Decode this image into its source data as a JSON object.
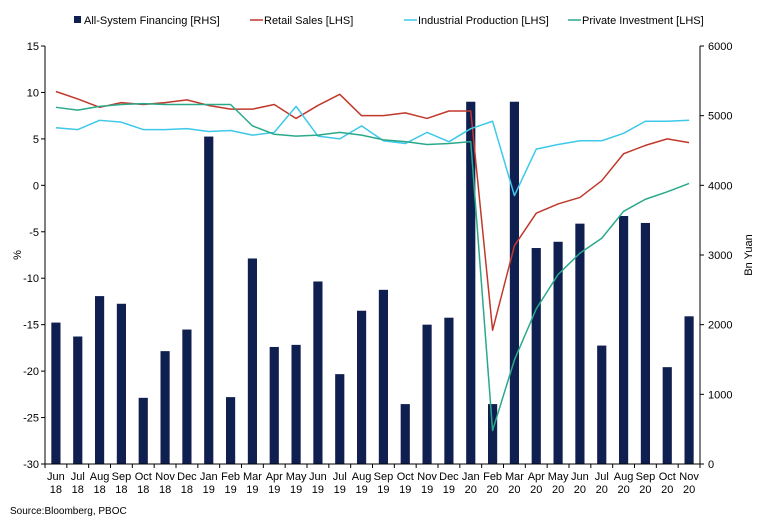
{
  "chart_data": {
    "type": "bar",
    "categories": [
      [
        "Jun",
        "18"
      ],
      [
        "Jul",
        "18"
      ],
      [
        "Aug",
        "18"
      ],
      [
        "Sep",
        "18"
      ],
      [
        "Oct",
        "18"
      ],
      [
        "Nov",
        "18"
      ],
      [
        "Dec",
        "18"
      ],
      [
        "Jan",
        "19"
      ],
      [
        "Feb",
        "19"
      ],
      [
        "Mar",
        "19"
      ],
      [
        "Apr",
        "19"
      ],
      [
        "May",
        "19"
      ],
      [
        "Jun",
        "19"
      ],
      [
        "Jul",
        "19"
      ],
      [
        "Aug",
        "19"
      ],
      [
        "Sep",
        "19"
      ],
      [
        "Oct",
        "19"
      ],
      [
        "Nov",
        "19"
      ],
      [
        "Dec",
        "19"
      ],
      [
        "Jan",
        "20"
      ],
      [
        "Feb",
        "20"
      ],
      [
        "Mar",
        "20"
      ],
      [
        "Apr",
        "20"
      ],
      [
        "May",
        "20"
      ],
      [
        "Jun",
        "20"
      ],
      [
        "Jul",
        "20"
      ],
      [
        "Aug",
        "20"
      ],
      [
        "Sep",
        "20"
      ],
      [
        "Oct",
        "20"
      ],
      [
        "Nov",
        "20"
      ]
    ],
    "ylabel": "%",
    "ylabel_right": "Bn Yuan",
    "ylim": [
      -30,
      15
    ],
    "ylim_right": [
      0,
      6000
    ],
    "yticks_left": [
      "15",
      "10",
      "5",
      "0",
      "-5",
      "-10",
      "-15",
      "-20",
      "-25",
      "-30"
    ],
    "yticks_right": [
      "6000",
      "5000",
      "4000",
      "3000",
      "2000",
      "1000",
      "0"
    ],
    "legend_position": "top",
    "grid": false,
    "series": [
      {
        "name": "All-System Financing [RHS]",
        "type": "bar",
        "axis": "right",
        "color": "#0f1f4f",
        "values": [
          2030,
          1830,
          2410,
          2300,
          950,
          1620,
          1930,
          4700,
          960,
          2950,
          1680,
          1710,
          2620,
          1290,
          2200,
          2500,
          860,
          2000,
          2100,
          5200,
          860,
          5200,
          3100,
          3190,
          3450,
          1700,
          3560,
          3460,
          1390,
          2120
        ]
      },
      {
        "name": "Retail Sales [LHS]",
        "type": "line",
        "axis": "left",
        "color": "#c0392b",
        "values": [
          10.1,
          9.3,
          8.4,
          8.9,
          8.7,
          8.9,
          9.2,
          8.6,
          8.2,
          8.2,
          8.7,
          7.2,
          8.6,
          9.8,
          7.5,
          7.5,
          7.8,
          7.2,
          8.0,
          8.0,
          -15.6,
          -6.5,
          -3.0,
          -2.0,
          -1.3,
          0.5,
          3.4,
          4.3,
          5.0,
          4.6
        ]
      },
      {
        "name": "Industrial Production [LHS]",
        "type": "line",
        "axis": "left",
        "color": "#3ec8ea",
        "values": [
          6.2,
          6.0,
          7.0,
          6.8,
          6.0,
          6.0,
          6.1,
          5.8,
          5.9,
          5.4,
          5.7,
          8.5,
          5.3,
          5.0,
          6.4,
          4.8,
          4.5,
          5.7,
          4.7,
          6.1,
          6.9,
          -1.1,
          3.9,
          4.4,
          4.8,
          4.8,
          5.6,
          6.9,
          6.9,
          7.0
        ]
      },
      {
        "name": "Private Investment [LHS]",
        "type": "line",
        "axis": "left",
        "color": "#2aa98a",
        "values": [
          8.4,
          8.1,
          8.5,
          8.7,
          8.8,
          8.7,
          8.7,
          8.7,
          8.7,
          6.4,
          5.5,
          5.3,
          5.4,
          5.7,
          5.4,
          4.9,
          4.7,
          4.4,
          4.5,
          4.7,
          -26.4,
          -18.8,
          -13.3,
          -9.6,
          -7.3,
          -5.7,
          -2.8,
          -1.5,
          -0.7,
          0.2
        ]
      }
    ]
  },
  "footer": {
    "source": "Source:Bloomberg, PBOC"
  }
}
